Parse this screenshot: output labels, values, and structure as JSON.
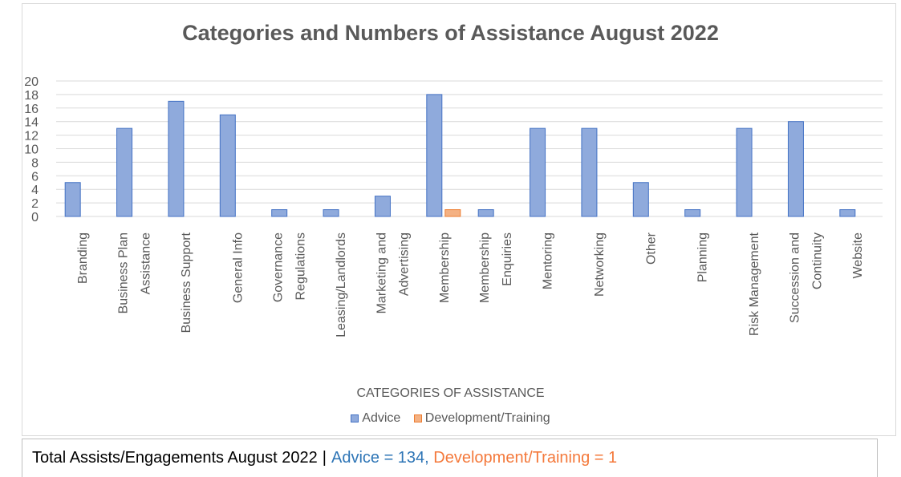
{
  "chart_data": {
    "type": "bar",
    "title": "Categories and  Numbers of Assistance August 2022",
    "xlabel": "CATEGORIES OF ASSISTANCE",
    "ylabel": "",
    "ylim": [
      0,
      20
    ],
    "yticks": [
      0,
      2,
      4,
      6,
      8,
      10,
      12,
      14,
      16,
      18,
      20
    ],
    "grid": true,
    "legend_position": "bottom",
    "categories": [
      [
        "Branding"
      ],
      [
        "Business Plan",
        "Assistance"
      ],
      [
        "Business Support"
      ],
      [
        "General Info"
      ],
      [
        "Governance",
        "Regulations"
      ],
      [
        "Leasing/Landlords"
      ],
      [
        "Marketing and",
        "Advertising"
      ],
      [
        "Membership"
      ],
      [
        "Membership",
        "Enquiries"
      ],
      [
        "Mentoring"
      ],
      [
        "Networking"
      ],
      [
        "Other"
      ],
      [
        "Planning"
      ],
      [
        "Risk Management"
      ],
      [
        "Succession and",
        "Continuity"
      ],
      [
        "Website"
      ]
    ],
    "series": [
      {
        "name": "Advice",
        "color": "#8faadc",
        "stroke": "#4472c4",
        "values": [
          5,
          13,
          17,
          15,
          1,
          1,
          3,
          18,
          1,
          13,
          13,
          5,
          1,
          13,
          14,
          1
        ]
      },
      {
        "name": "Development/Training",
        "color": "#f4b183",
        "stroke": "#ed7d31",
        "values": [
          0,
          0,
          0,
          0,
          0,
          0,
          0,
          1,
          0,
          0,
          0,
          0,
          0,
          0,
          0,
          0
        ]
      }
    ]
  },
  "summary": {
    "label": "Total Assists/Engagements August 2022",
    "separator": "|",
    "advice_text": "Advice = 134,",
    "advice_color": "#2e75b6",
    "training_text": "Development/Training = 1",
    "training_color": "#f4793b"
  }
}
